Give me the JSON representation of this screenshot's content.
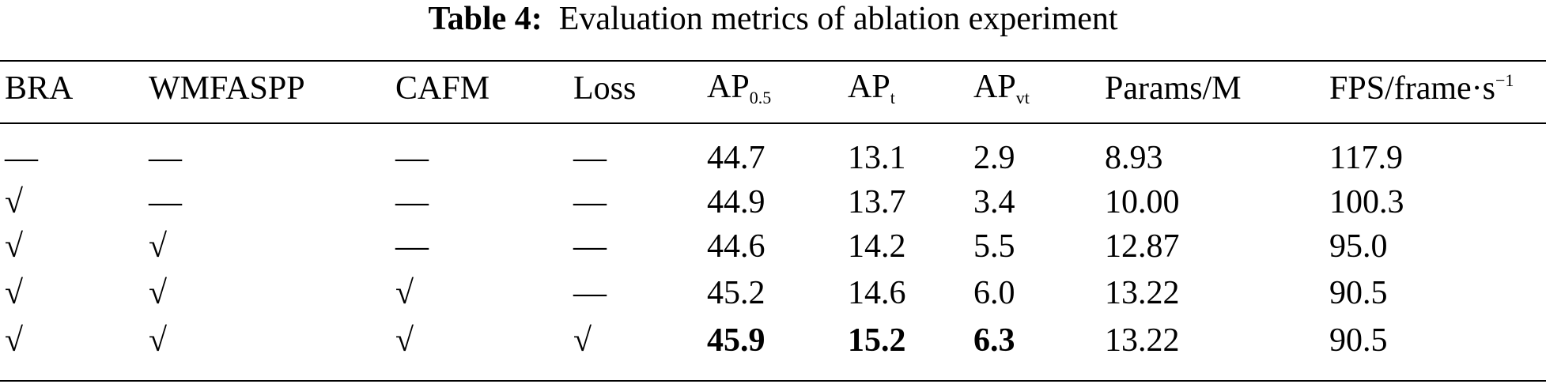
{
  "title": {
    "label": "Table 4:",
    "text": "Evaluation metrics of ablation experiment"
  },
  "table": {
    "headers": [
      "BRA",
      "WMFASPP",
      "CAFM",
      "Loss",
      {
        "text": "AP",
        "sub": "0.5"
      },
      {
        "text": "AP",
        "sub": "t"
      },
      {
        "text": "AP",
        "sub": "vt"
      },
      "Params/M",
      {
        "text": "FPS/frame·s",
        "sup": "−1"
      }
    ],
    "rows": [
      [
        "—",
        "—",
        "—",
        "—",
        "44.7",
        "13.1",
        "2.9",
        "8.93",
        "117.9"
      ],
      [
        "√",
        "—",
        "—",
        "—",
        "44.9",
        "13.7",
        "3.4",
        "10.00",
        "100.3"
      ],
      [
        "√",
        "√",
        "—",
        "—",
        "44.6",
        "14.2",
        "5.5",
        "12.87",
        "95.0"
      ],
      [
        "√",
        "√",
        "√",
        "—",
        "45.2",
        "14.6",
        "6.0",
        "13.22",
        "90.5"
      ],
      [
        "√",
        "√",
        "√",
        "√",
        "45.9",
        "15.2",
        "6.3",
        "13.22",
        "90.5"
      ]
    ],
    "bold_cells": [
      [
        4,
        4
      ],
      [
        4,
        5
      ],
      [
        4,
        6
      ]
    ]
  }
}
